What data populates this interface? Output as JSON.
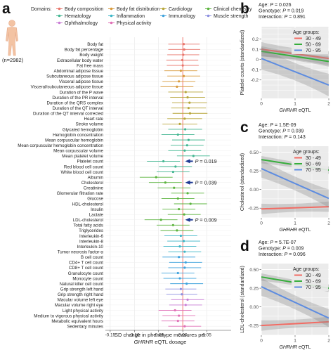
{
  "panel_letters": {
    "a": "a",
    "b": "b",
    "c": "c",
    "d": "d"
  },
  "domains": {
    "header": "Domains:",
    "items": [
      {
        "label": "Body composition",
        "color": "#E8756B"
      },
      {
        "label": "Body fat distribution",
        "color": "#D89A3C"
      },
      {
        "label": "Cardiology",
        "color": "#B7A63B"
      },
      {
        "label": "Clinical chemistry",
        "color": "#5CB43F"
      },
      {
        "label": "Hematology",
        "color": "#42B691"
      },
      {
        "label": "Inflammation",
        "color": "#3DB6C7"
      },
      {
        "label": "Immunology",
        "color": "#40A3DD"
      },
      {
        "label": "Muscle strength",
        "color": "#8C8FE0"
      },
      {
        "label": "Ophthalmology",
        "color": "#C97CD6"
      },
      {
        "label": "Physical activity",
        "color": "#E070B6"
      }
    ]
  },
  "sample_size": "(n=2982)",
  "chart_data": [
    {
      "type": "forest",
      "xlabel": "SD change in phenotype measures per GHRHR eQTL dosage",
      "xlim": [
        -0.16,
        0.1
      ],
      "xticks": [
        -0.15,
        -0.1,
        -0.05,
        0.0,
        0.05
      ],
      "xtick_labels": [
        "-0.15",
        "-0.10",
        "-0.05",
        "0.00",
        "0.05"
      ],
      "annotations": [
        {
          "phenotype": "Platelet count",
          "text": "P = 0.019"
        },
        {
          "phenotype": "Cholesterol",
          "text": "P = 0.039"
        },
        {
          "phenotype": "LDL-cholesterol",
          "text": "P = 0.009"
        }
      ],
      "rows": [
        {
          "label": "Body fat",
          "domain": 0,
          "est": 0.002,
          "lo": -0.03,
          "hi": 0.035
        },
        {
          "label": "Body fat percentage",
          "domain": 0,
          "est": 0.003,
          "lo": -0.03,
          "hi": 0.036
        },
        {
          "label": "Body weight",
          "domain": 0,
          "est": 0.001,
          "lo": -0.032,
          "hi": 0.034
        },
        {
          "label": "Extracellular body water",
          "domain": 0,
          "est": -0.001,
          "lo": -0.034,
          "hi": 0.032
        },
        {
          "label": "Fat free mass",
          "domain": 0,
          "est": 0.0,
          "lo": -0.033,
          "hi": 0.033
        },
        {
          "label": "Abdominal adipose tissue",
          "domain": 1,
          "est": -0.004,
          "lo": -0.038,
          "hi": 0.03
        },
        {
          "label": "Subcutaneous adipose tissue",
          "domain": 1,
          "est": 0.002,
          "lo": -0.032,
          "hi": 0.036
        },
        {
          "label": "Visceral adipose tissue",
          "domain": 1,
          "est": -0.008,
          "lo": -0.042,
          "hi": 0.026
        },
        {
          "label": "Visceral/subcutaneous adipose tissue",
          "domain": 1,
          "est": -0.012,
          "lo": -0.046,
          "hi": 0.022
        },
        {
          "label": "Duration of the P wave",
          "domain": 2,
          "est": 0.006,
          "lo": -0.03,
          "hi": 0.042
        },
        {
          "label": "Duration of the PR interval",
          "domain": 2,
          "est": 0.01,
          "lo": -0.026,
          "hi": 0.046
        },
        {
          "label": "Duration of the QRS complex",
          "domain": 2,
          "est": 0.014,
          "lo": -0.022,
          "hi": 0.05
        },
        {
          "label": "Duration of the QT interval",
          "domain": 2,
          "est": 0.012,
          "lo": -0.024,
          "hi": 0.048
        },
        {
          "label": "Duration of the QT interval corrected",
          "domain": 2,
          "est": 0.015,
          "lo": -0.021,
          "hi": 0.051
        },
        {
          "label": "Heart rate",
          "domain": 2,
          "est": 0.004,
          "lo": -0.032,
          "hi": 0.04
        },
        {
          "label": "Stroke volume",
          "domain": 2,
          "est": -0.006,
          "lo": -0.042,
          "hi": 0.03
        },
        {
          "label": "Glycated hemoglobin",
          "domain": 4,
          "est": 0.005,
          "lo": -0.03,
          "hi": 0.04
        },
        {
          "label": "Hemoglobin concentration",
          "domain": 4,
          "est": -0.01,
          "lo": -0.044,
          "hi": 0.024
        },
        {
          "label": "Mean corpuscular hemoglobin",
          "domain": 4,
          "est": 0.012,
          "lo": -0.022,
          "hi": 0.046
        },
        {
          "label": "Mean corpuscular hemoglobin concentration",
          "domain": 4,
          "est": 0.009,
          "lo": -0.025,
          "hi": 0.043
        },
        {
          "label": "Mean corpuscular volume",
          "domain": 4,
          "est": 0.004,
          "lo": -0.03,
          "hi": 0.038
        },
        {
          "label": "Mean platelet volume",
          "domain": 4,
          "est": 0.022,
          "lo": -0.012,
          "hi": 0.056
        },
        {
          "label": "Platelet count",
          "domain": 4,
          "est": -0.04,
          "lo": -0.074,
          "hi": -0.006
        },
        {
          "label": "Red blood cell count",
          "domain": 4,
          "est": -0.015,
          "lo": -0.049,
          "hi": 0.019
        },
        {
          "label": "White blood cell count",
          "domain": 4,
          "est": -0.02,
          "lo": -0.054,
          "hi": 0.014
        },
        {
          "label": "Albumin",
          "domain": 3,
          "est": -0.055,
          "lo": -0.089,
          "hi": -0.021
        },
        {
          "label": "Cholesterol",
          "domain": 3,
          "est": -0.036,
          "lo": -0.07,
          "hi": -0.002
        },
        {
          "label": "Creatinine",
          "domain": 3,
          "est": -0.018,
          "lo": -0.052,
          "hi": 0.016
        },
        {
          "label": "Glomerular filtration rate",
          "domain": 3,
          "est": 0.01,
          "lo": -0.024,
          "hi": 0.044
        },
        {
          "label": "Glucose",
          "domain": 3,
          "est": -0.01,
          "lo": -0.044,
          "hi": 0.024
        },
        {
          "label": "HDL-cholesterol",
          "domain": 3,
          "est": 0.016,
          "lo": -0.018,
          "hi": 0.05
        },
        {
          "label": "Insulin",
          "domain": 3,
          "est": -0.008,
          "lo": -0.042,
          "hi": 0.026
        },
        {
          "label": "Lactate",
          "domain": 3,
          "est": 0.003,
          "lo": -0.031,
          "hi": 0.037
        },
        {
          "label": "LDL-cholesterol",
          "domain": 3,
          "est": -0.045,
          "lo": -0.079,
          "hi": -0.011
        },
        {
          "label": "Total fatty acids",
          "domain": 3,
          "est": -0.02,
          "lo": -0.054,
          "hi": 0.014
        },
        {
          "label": "Triglycerides",
          "domain": 3,
          "est": -0.012,
          "lo": -0.046,
          "hi": 0.022
        },
        {
          "label": "Interleukin-6",
          "domain": 5,
          "est": -0.004,
          "lo": -0.038,
          "hi": 0.03
        },
        {
          "label": "Interleukin-8",
          "domain": 5,
          "est": 0.002,
          "lo": -0.032,
          "hi": 0.036
        },
        {
          "label": "Interleukin-10",
          "domain": 5,
          "est": -0.006,
          "lo": -0.04,
          "hi": 0.028
        },
        {
          "label": "Tumor necrosis factor-α",
          "domain": 5,
          "est": 0.004,
          "lo": -0.03,
          "hi": 0.038
        },
        {
          "label": "B cell count",
          "domain": 6,
          "est": -0.008,
          "lo": -0.042,
          "hi": 0.026
        },
        {
          "label": "CD4+ T cell count",
          "domain": 6,
          "est": 0.006,
          "lo": -0.028,
          "hi": 0.04
        },
        {
          "label": "CD8+ T cell count",
          "domain": 6,
          "est": 0.004,
          "lo": -0.03,
          "hi": 0.038
        },
        {
          "label": "Granulocyte count",
          "domain": 6,
          "est": -0.01,
          "lo": -0.044,
          "hi": 0.024
        },
        {
          "label": "Monocyte count",
          "domain": 6,
          "est": -0.006,
          "lo": -0.04,
          "hi": 0.028
        },
        {
          "label": "Natural killer cell count",
          "domain": 6,
          "est": 0.008,
          "lo": -0.026,
          "hi": 0.042
        },
        {
          "label": "Grip strength left hand",
          "domain": 7,
          "est": -0.004,
          "lo": -0.036,
          "hi": 0.028
        },
        {
          "label": "Grip strength right hand",
          "domain": 7,
          "est": -0.002,
          "lo": -0.034,
          "hi": 0.03
        },
        {
          "label": "Macular volume left eye",
          "domain": 8,
          "est": 0.01,
          "lo": -0.024,
          "hi": 0.044
        },
        {
          "label": "Macular volume right eye",
          "domain": 8,
          "est": 0.006,
          "lo": -0.028,
          "hi": 0.04
        },
        {
          "label": "Light physical activity",
          "domain": 9,
          "est": -0.016,
          "lo": -0.05,
          "hi": 0.018
        },
        {
          "label": "Medium to vigorous physical activity",
          "domain": 9,
          "est": -0.008,
          "lo": -0.042,
          "hi": 0.026
        },
        {
          "label": "Metabolic equivalent hours",
          "domain": 9,
          "est": -0.01,
          "lo": -0.044,
          "hi": 0.024
        },
        {
          "label": "Sedentary minutes",
          "domain": 9,
          "est": 0.004,
          "lo": -0.03,
          "hi": 0.038
        }
      ]
    },
    {
      "type": "line",
      "panel": "b",
      "stats": [
        "Age: P = 0.026",
        "Genotype: P = 0.019",
        "Interaction: P = 0.891"
      ],
      "ylabel": "Platelet counts (standardized)",
      "xlabel": "GHRHR eQTL",
      "xlim": [
        0,
        2
      ],
      "xticks": [
        0,
        1,
        2
      ],
      "ylim": [
        -0.38,
        0.32
      ],
      "yticks": [
        -0.2,
        -0.1,
        0.0,
        0.1,
        0.2
      ],
      "ytick_labels": [
        "-0.2",
        "-0.1",
        "0",
        "0.1",
        "0.2"
      ],
      "legend_title": "Age groups:",
      "series": [
        {
          "name": "30 - 49",
          "color": "#F26B63",
          "y0": 0.1,
          "y1": 0.01,
          "band": 0.07
        },
        {
          "name": "50 - 69",
          "color": "#36AE3C",
          "y0": 0.08,
          "y1": -0.02,
          "band": 0.05
        },
        {
          "name": "70 - 95",
          "color": "#5D8CE0",
          "y0": 0.01,
          "y1": -0.25,
          "band": 0.11
        }
      ]
    },
    {
      "type": "line",
      "panel": "c",
      "stats": [
        "Age: P = 1.5E-09",
        "Genotype: P = 0.039",
        "Interaction: P = 0.143"
      ],
      "ylabel": "Cholesterol (standardized)",
      "xlabel": "GHRHR eQTL",
      "xlim": [
        0,
        2
      ],
      "xticks": [
        0,
        1,
        2
      ],
      "ylim": [
        -0.38,
        0.58
      ],
      "yticks": [
        -0.25,
        0.0,
        0.25,
        0.5
      ],
      "ytick_labels": [
        "-0.25",
        "0.00",
        "0.25",
        "0.50"
      ],
      "legend_title": "Age groups:",
      "series": [
        {
          "name": "30 - 49",
          "color": "#F26B63",
          "y0": -0.26,
          "y1": -0.23,
          "band": 0.07
        },
        {
          "name": "50 - 69",
          "color": "#36AE3C",
          "y0": 0.4,
          "y1": 0.26,
          "band": 0.05
        },
        {
          "name": "70 - 95",
          "color": "#5D8CE0",
          "y0": 0.28,
          "y1": -0.12,
          "band": 0.12
        }
      ]
    },
    {
      "type": "line",
      "panel": "d",
      "stats": [
        "Age: P = 5.7E-07",
        "Genotype: P = 0.009",
        "Interaction: P = 0.096"
      ],
      "ylabel": "LDL-cholesterol (standardized)",
      "xlabel": "GHRHR eQTL",
      "xlim": [
        0,
        2
      ],
      "xticks": [
        0,
        1,
        2
      ],
      "ylim": [
        -0.38,
        0.58
      ],
      "yticks": [
        -0.25,
        0.0,
        0.25,
        0.5
      ],
      "ytick_labels": [
        "-0.25",
        "0.00",
        "0.25",
        "0.50"
      ],
      "legend_title": "Age groups:",
      "series": [
        {
          "name": "30 - 49",
          "color": "#F26B63",
          "y0": -0.25,
          "y1": -0.2,
          "band": 0.07
        },
        {
          "name": "50 - 69",
          "color": "#36AE3C",
          "y0": 0.4,
          "y1": 0.25,
          "band": 0.05
        },
        {
          "name": "70 - 95",
          "color": "#5D8CE0",
          "y0": 0.27,
          "y1": -0.15,
          "band": 0.12
        }
      ]
    }
  ]
}
